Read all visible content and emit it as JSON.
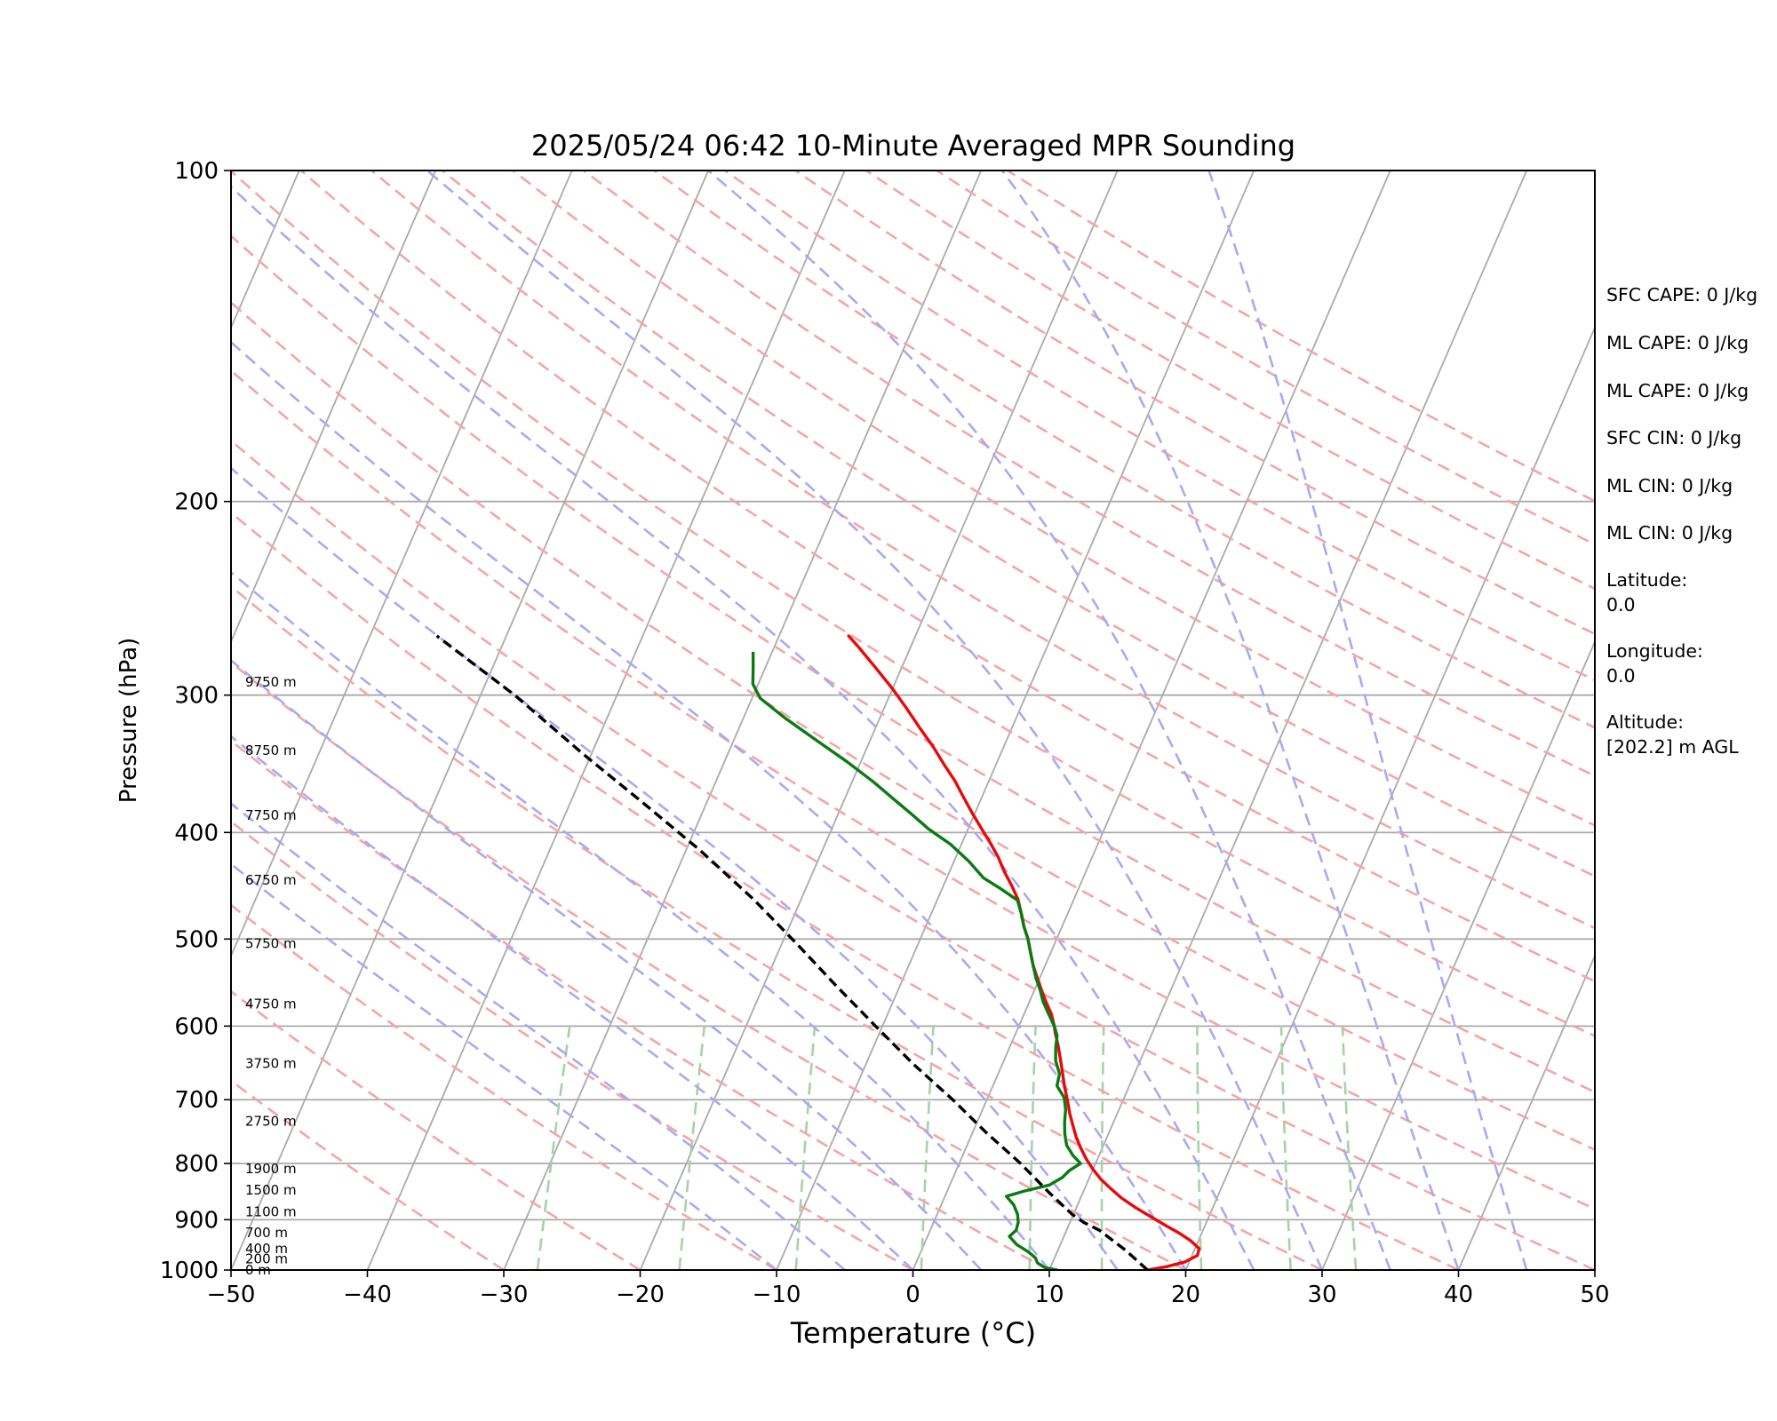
{
  "chart_data": {
    "type": "line",
    "title": "2025/05/24 06:42 10-Minute Averaged MPR Sounding",
    "xlabel": "Temperature (°C)",
    "ylabel": "Pressure (hPa)",
    "xlim": [
      -50,
      50
    ],
    "ylim": [
      1000,
      100
    ],
    "yscale": "log",
    "x_ticks": [
      "−50",
      "−40",
      "−30",
      "−20",
      "−10",
      "0",
      "10",
      "20",
      "30",
      "40",
      "50"
    ],
    "x_tick_values": [
      -50,
      -40,
      -30,
      -20,
      -10,
      0,
      10,
      20,
      30,
      40,
      50
    ],
    "y_ticks": [
      "1000",
      "900",
      "800",
      "700",
      "600",
      "500",
      "400",
      "300",
      "200",
      "100"
    ],
    "y_tick_values": [
      1000,
      900,
      800,
      700,
      600,
      500,
      400,
      300,
      200,
      100
    ],
    "skew": 35,
    "horizontal_gridlines": [
      900,
      800,
      700,
      600,
      500,
      400,
      300,
      200
    ],
    "height_labels": [
      {
        "text": "0 m",
        "p": 1000
      },
      {
        "text": "200 m",
        "p": 977
      },
      {
        "text": "400 m",
        "p": 956
      },
      {
        "text": "700 m",
        "p": 925
      },
      {
        "text": "1100 m",
        "p": 885
      },
      {
        "text": "1500 m",
        "p": 846
      },
      {
        "text": "1900 m",
        "p": 809
      },
      {
        "text": "2750 m",
        "p": 732
      },
      {
        "text": "3750 m",
        "p": 649
      },
      {
        "text": "4750 m",
        "p": 573
      },
      {
        "text": "5750 m",
        "p": 505
      },
      {
        "text": "6750 m",
        "p": 442
      },
      {
        "text": "7750 m",
        "p": 386
      },
      {
        "text": "8750 m",
        "p": 337
      },
      {
        "text": "9750 m",
        "p": 292
      }
    ],
    "series": [
      {
        "key": "temperature",
        "color": "#e8090a",
        "style": "solid",
        "points": [
          [
            17.2,
            1000
          ],
          [
            18.5,
            993
          ],
          [
            19.7,
            983
          ],
          [
            20.4,
            970
          ],
          [
            20.3,
            956
          ],
          [
            19.4,
            940
          ],
          [
            18.3,
            925
          ],
          [
            17.2,
            912
          ],
          [
            15.8,
            895
          ],
          [
            14.3,
            877
          ],
          [
            13.0,
            860
          ],
          [
            11.9,
            843
          ],
          [
            10.9,
            827
          ],
          [
            10.0,
            810
          ],
          [
            9.2,
            793
          ],
          [
            8.4,
            774
          ],
          [
            7.7,
            756
          ],
          [
            7.1,
            738
          ],
          [
            6.5,
            720
          ],
          [
            5.9,
            700
          ],
          [
            5.3,
            682
          ],
          [
            4.7,
            662
          ],
          [
            4.1,
            643
          ],
          [
            3.5,
            625
          ],
          [
            2.9,
            609
          ],
          [
            2.6,
            600
          ],
          [
            2.0,
            585
          ],
          [
            1.2,
            570
          ],
          [
            0.5,
            556
          ],
          [
            -0.2,
            542
          ],
          [
            -0.9,
            528
          ],
          [
            -1.5,
            514
          ],
          [
            -2.1,
            500
          ],
          [
            -2.8,
            487
          ],
          [
            -3.4,
            474
          ],
          [
            -4.1,
            460
          ],
          [
            -5.0,
            447
          ],
          [
            -6.0,
            434
          ],
          [
            -6.9,
            421
          ],
          [
            -8.0,
            408
          ],
          [
            -9.1,
            396
          ],
          [
            -10.2,
            384
          ],
          [
            -11.3,
            372
          ],
          [
            -12.5,
            359
          ],
          [
            -13.8,
            347
          ],
          [
            -15.2,
            334
          ],
          [
            -16.8,
            321
          ],
          [
            -18.4,
            308
          ],
          [
            -20.0,
            296
          ],
          [
            -21.8,
            284
          ],
          [
            -23.7,
            272
          ],
          [
            -24.9,
            265
          ],
          [
            -24.9,
            265.5
          ]
        ]
      },
      {
        "key": "dewpoint",
        "color": "#0b7a14",
        "style": "solid",
        "points": [
          [
            10.6,
            1000
          ],
          [
            9.6,
            995
          ],
          [
            8.9,
            985
          ],
          [
            8.6,
            975
          ],
          [
            7.9,
            963
          ],
          [
            6.8,
            948
          ],
          [
            6.0,
            932
          ],
          [
            6.3,
            920
          ],
          [
            6.2,
            905
          ],
          [
            5.9,
            890
          ],
          [
            5.3,
            872
          ],
          [
            4.5,
            857
          ],
          [
            5.6,
            848
          ],
          [
            7.3,
            837
          ],
          [
            8.0,
            824
          ],
          [
            8.3,
            812
          ],
          [
            8.9,
            800
          ],
          [
            8.1,
            787
          ],
          [
            7.3,
            770
          ],
          [
            6.8,
            752
          ],
          [
            6.4,
            733
          ],
          [
            6.1,
            715
          ],
          [
            5.6,
            697
          ],
          [
            4.7,
            680
          ],
          [
            4.5,
            663
          ],
          [
            3.8,
            645
          ],
          [
            3.4,
            628
          ],
          [
            3.1,
            612
          ],
          [
            2.6,
            600
          ],
          [
            1.8,
            585
          ],
          [
            1.0,
            570
          ],
          [
            0.4,
            556
          ],
          [
            -0.3,
            542
          ],
          [
            -0.9,
            528
          ],
          [
            -1.5,
            514
          ],
          [
            -2.1,
            500
          ],
          [
            -2.8,
            487
          ],
          [
            -3.4,
            474
          ],
          [
            -4.1,
            461
          ],
          [
            -5.7,
            450
          ],
          [
            -7.3,
            440
          ],
          [
            -8.9,
            425
          ],
          [
            -10.8,
            410
          ],
          [
            -12.9,
            397
          ],
          [
            -14.6,
            385
          ],
          [
            -16.4,
            373
          ],
          [
            -18.4,
            360
          ],
          [
            -21.0,
            345
          ],
          [
            -23.9,
            330
          ],
          [
            -26.9,
            315
          ],
          [
            -29.4,
            302
          ],
          [
            -30.4,
            293
          ],
          [
            -30.9,
            283
          ],
          [
            -31.4,
            274
          ]
        ]
      },
      {
        "key": "parcel",
        "color": "#000000",
        "style": "dashed",
        "points": [
          [
            17.2,
            1000
          ],
          [
            15.0,
            960
          ],
          [
            12.4,
            920
          ],
          [
            11.0,
            905
          ],
          [
            9.9,
            890
          ],
          [
            7.5,
            850
          ],
          [
            4.5,
            800
          ],
          [
            1.0,
            750
          ],
          [
            -2.5,
            700
          ],
          [
            -6.5,
            650
          ],
          [
            -10.5,
            600
          ],
          [
            -14.8,
            550
          ],
          [
            -18.9,
            505
          ],
          [
            -23.5,
            460
          ],
          [
            -29.0,
            415
          ],
          [
            -34.8,
            375
          ],
          [
            -40.5,
            340
          ],
          [
            -47.5,
            300
          ],
          [
            -55.1,
            265
          ]
        ]
      }
    ],
    "dry_adiabats_theta_C": [
      -30,
      -20,
      -10,
      0,
      10,
      20,
      30,
      40,
      50,
      60,
      70,
      80,
      90,
      100,
      110,
      120,
      130,
      140,
      150,
      160,
      170,
      180,
      190,
      200
    ],
    "moist_adiabats_start_C": [
      -10,
      -5,
      0,
      5,
      10,
      15,
      20,
      25,
      30,
      35,
      40,
      45
    ],
    "mixing_ratios": [
      0.4,
      1,
      2,
      4,
      7,
      10,
      16,
      24,
      32
    ],
    "colors": {
      "isotherm": "#aaaaaa",
      "isobar": "#aaaaaa",
      "dry_adiabat": "#f5a5a5",
      "moist_adiabat": "#a9a9f2",
      "mixing_ratio": "#a5d3a5"
    },
    "annotations": {
      "sfc_cape": "SFC CAPE: 0 J/kg",
      "ml_cape_1": "ML CAPE: 0 J/kg",
      "ml_cape_2": "ML CAPE: 0 J/kg",
      "sfc_cin": "SFC CIN: 0 J/kg",
      "ml_cin_1": "ML CIN: 0 J/kg",
      "ml_cin_2": "ML CIN: 0 J/kg",
      "latitude_label": "Latitude:",
      "latitude_value": "0.0",
      "longitude_label": "Longitude:",
      "longitude_value": "0.0",
      "altitude_label": "Altitude:",
      "altitude_value": "[202.2] m AGL"
    }
  }
}
